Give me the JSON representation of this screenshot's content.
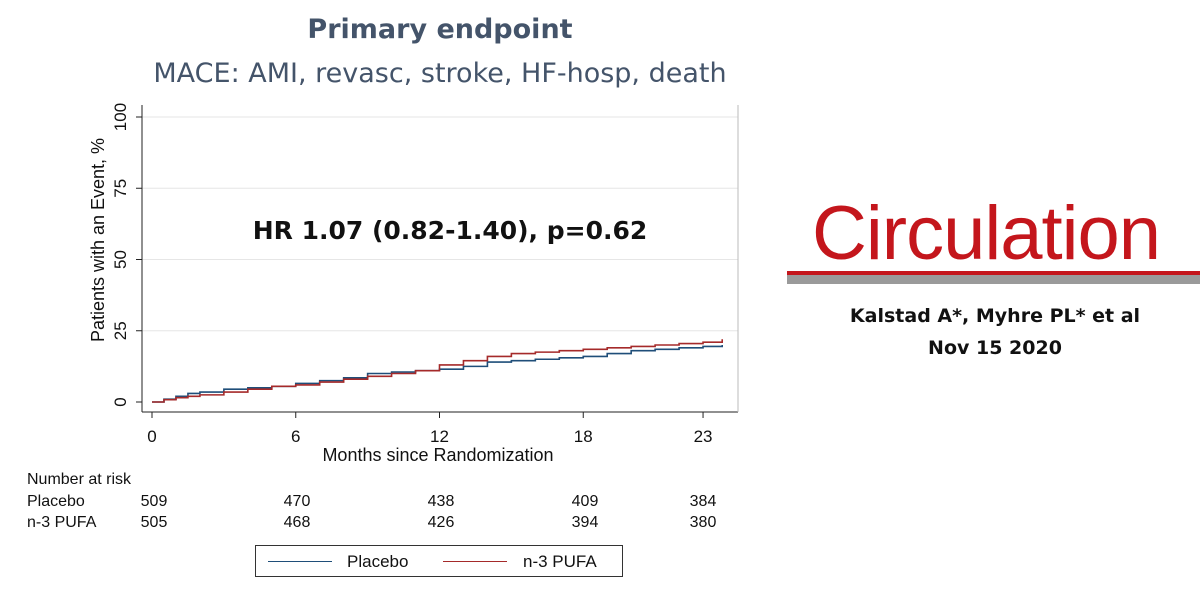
{
  "header": {
    "title": "Primary endpoint",
    "subtitle": "MACE: AMI, revasc, stroke, HF-hosp, death"
  },
  "annotation": {
    "hr_text": "HR 1.07 (0.82-1.40), p=0.62"
  },
  "journal": {
    "name": "Circulation",
    "authors": "Kalstad A*, Myhre PL* et al",
    "date": "Nov 15 2020"
  },
  "colors": {
    "placebo": "#1f4e79",
    "n3pufa": "#a52a2a",
    "title": "#44546a",
    "logo": "#c4161c"
  },
  "risk_table": {
    "header": "Number at risk",
    "rows": [
      {
        "label": "Placebo",
        "values": [
          "509",
          "470",
          "438",
          "409",
          "384"
        ]
      },
      {
        "label": "n-3 PUFA",
        "values": [
          "505",
          "468",
          "426",
          "394",
          "380"
        ]
      }
    ]
  },
  "legend": {
    "entries": [
      "Placebo",
      "n-3 PUFA"
    ]
  },
  "chart_data": {
    "type": "line",
    "title": "Primary endpoint",
    "xlabel": "Months since Randomization",
    "ylabel": "Patients with an Event, %",
    "xlim": [
      0,
      24
    ],
    "ylim": [
      0,
      100
    ],
    "xticks": [
      0,
      6,
      12,
      18,
      23
    ],
    "yticks": [
      0,
      25,
      50,
      75,
      100
    ],
    "series": [
      {
        "name": "Placebo",
        "x": [
          0,
          0.5,
          1,
          1.5,
          2,
          3,
          4,
          5,
          6,
          7,
          8,
          9,
          10,
          11,
          12,
          13,
          14,
          15,
          16,
          17,
          18,
          19,
          20,
          21,
          22,
          23,
          23.8
        ],
        "y": [
          0,
          1,
          2,
          3,
          3.5,
          4.5,
          5,
          5.5,
          6.5,
          7.5,
          8.5,
          10,
          10.5,
          11,
          11.5,
          12.5,
          14,
          14.5,
          15,
          15.5,
          16,
          17,
          18,
          18.5,
          19,
          19.5,
          20
        ]
      },
      {
        "name": "n-3 PUFA",
        "x": [
          0,
          0.5,
          1,
          1.5,
          2,
          3,
          4,
          5,
          6,
          7,
          8,
          9,
          10,
          11,
          12,
          13,
          14,
          15,
          16,
          17,
          18,
          19,
          20,
          21,
          22,
          23,
          23.8
        ],
        "y": [
          0,
          0.8,
          1.5,
          2,
          2.5,
          3.5,
          4.5,
          5.5,
          6,
          7,
          8,
          9,
          10,
          11,
          13,
          14.5,
          16,
          17,
          17.5,
          18,
          18.5,
          19,
          19.5,
          20,
          20.5,
          21,
          22
        ]
      }
    ]
  }
}
